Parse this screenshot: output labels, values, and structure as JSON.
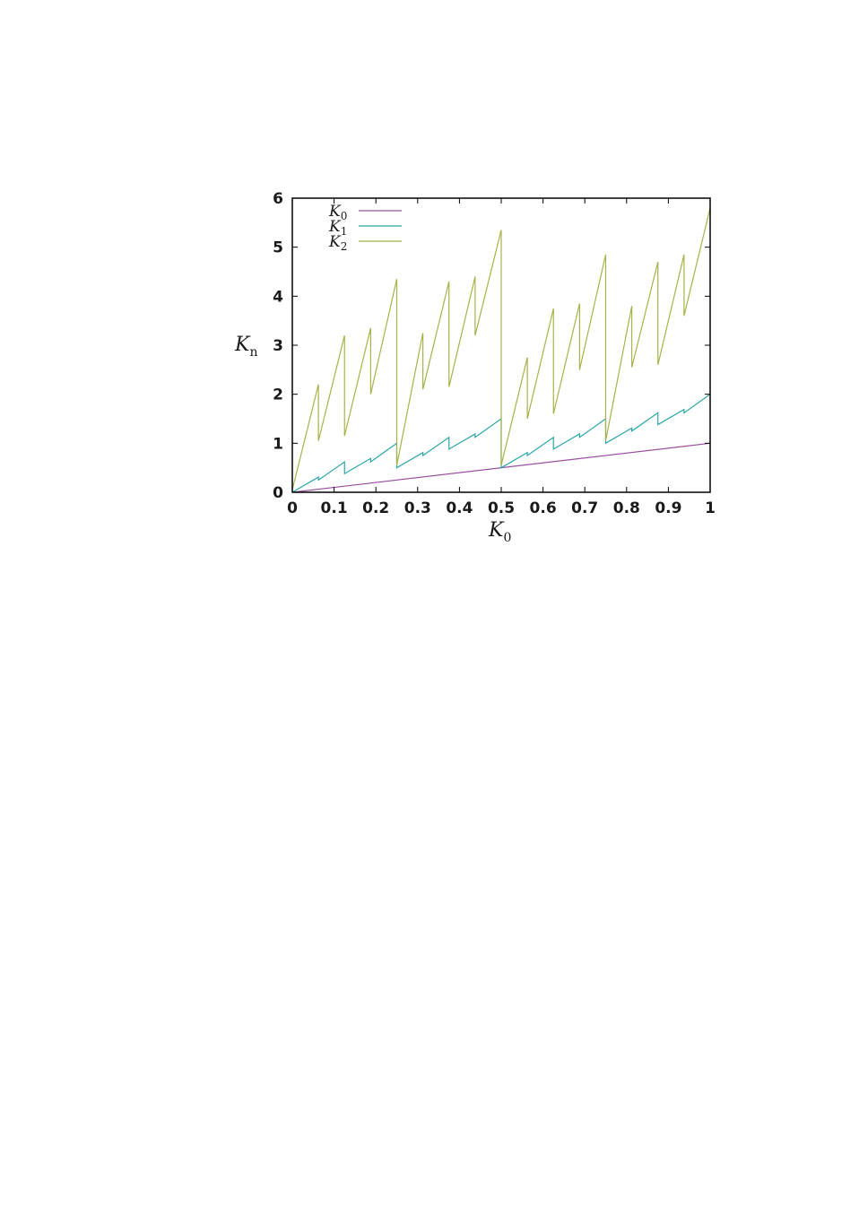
{
  "chart_data": {
    "type": "line",
    "xlabel": {
      "base": "K",
      "sub": "0"
    },
    "ylabel": {
      "base": "K",
      "sub": "n"
    },
    "xlim": [
      0,
      1
    ],
    "ylim": [
      0,
      6
    ],
    "xticks": [
      "0",
      "0.1",
      "0.2",
      "0.3",
      "0.4",
      "0.5",
      "0.6",
      "0.7",
      "0.8",
      "0.9",
      "1"
    ],
    "yticks": [
      "0",
      "1",
      "2",
      "3",
      "4",
      "5",
      "6"
    ],
    "grid": false,
    "legend_position": "top-left",
    "series": [
      {
        "name": {
          "base": "K",
          "sub": "0"
        },
        "color": "#9a4fa0",
        "description_formula": "K0 = x",
        "x": [
          0,
          1
        ],
        "y": [
          0,
          1
        ]
      },
      {
        "name": {
          "base": "K",
          "sub": "1"
        },
        "color": "#2aa6a6",
        "x": [
          0,
          0.0625,
          0.0625,
          0.125,
          0.125,
          0.1875,
          0.1875,
          0.25,
          0.25,
          0.3125,
          0.3125,
          0.375,
          0.375,
          0.4375,
          0.4375,
          0.5,
          0.5,
          0.5625,
          0.5625,
          0.625,
          0.625,
          0.6875,
          0.6875,
          0.75,
          0.75,
          0.8125,
          0.8125,
          0.875,
          0.875,
          0.9375,
          0.9375,
          1
        ],
        "y": [
          0,
          0.31,
          0.25,
          0.62,
          0.38,
          0.69,
          0.62,
          1.0,
          0.5,
          0.81,
          0.75,
          1.12,
          0.88,
          1.19,
          1.12,
          1.5,
          0.5,
          0.81,
          0.75,
          1.12,
          0.88,
          1.19,
          1.12,
          1.5,
          1.0,
          1.31,
          1.25,
          1.62,
          1.38,
          1.69,
          1.62,
          2.0
        ]
      },
      {
        "name": {
          "base": "K",
          "sub": "2"
        },
        "color": "#a8b24a",
        "x": [
          0,
          0.0625,
          0.0625,
          0.125,
          0.125,
          0.1875,
          0.1875,
          0.25,
          0.25,
          0.3125,
          0.3125,
          0.375,
          0.375,
          0.4375,
          0.4375,
          0.5,
          0.5,
          0.5625,
          0.5625,
          0.625,
          0.625,
          0.6875,
          0.6875,
          0.75,
          0.75,
          0.8125,
          0.8125,
          0.875,
          0.875,
          0.9375,
          0.9375,
          1
        ],
        "y": [
          0.05,
          2.2,
          1.05,
          3.2,
          1.15,
          3.35,
          2.0,
          4.35,
          0.55,
          3.25,
          2.1,
          4.3,
          2.15,
          4.4,
          3.2,
          5.35,
          0.55,
          2.75,
          1.5,
          3.75,
          1.6,
          3.85,
          2.5,
          4.85,
          1.05,
          3.8,
          2.55,
          4.7,
          2.6,
          4.85,
          3.6,
          5.8
        ]
      }
    ]
  }
}
